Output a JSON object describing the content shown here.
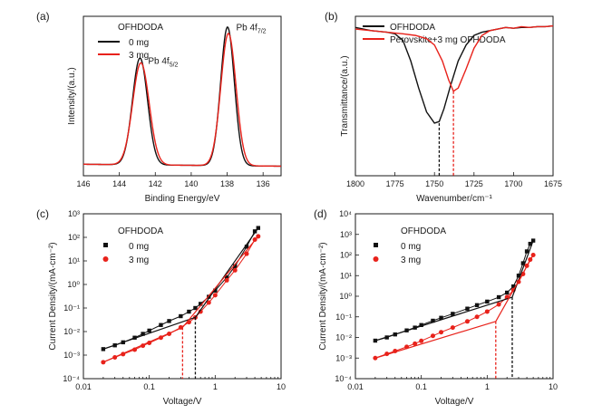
{
  "colors": {
    "black": "#111111",
    "red": "#e8221b"
  },
  "chart_data": [
    {
      "panel": "(a)",
      "type": "line",
      "xlabel": "Binding Energy/eV",
      "ylabel": "Intensity/(a.u.)",
      "xlim": [
        146,
        135
      ],
      "xticks": [
        146,
        144,
        142,
        140,
        138,
        136
      ],
      "ylim": [
        0,
        1
      ],
      "legend_title": "OFHDODA",
      "legend_position": "top-left",
      "annotations": [
        {
          "text": "Pb 4f",
          "sub": "5/2",
          "x": 142.4,
          "y": 0.72
        },
        {
          "text": "Pb 4f",
          "sub": "7/2",
          "x": 137.5,
          "y": 0.93
        }
      ],
      "series": [
        {
          "name": "0 mg",
          "color": "black",
          "baseline": 0.06,
          "peaks": [
            {
              "center": 142.85,
              "height": 0.73,
              "width": 0.42
            },
            {
              "center": 137.98,
              "height": 0.93,
              "width": 0.38
            }
          ]
        },
        {
          "name": "3 mg",
          "color": "red",
          "baseline": 0.06,
          "peaks": [
            {
              "center": 142.8,
              "height": 0.7,
              "width": 0.46
            },
            {
              "center": 137.93,
              "height": 0.89,
              "width": 0.42
            }
          ]
        }
      ]
    },
    {
      "panel": "(b)",
      "type": "line",
      "xlabel": "Wavenumber/cm⁻¹",
      "ylabel": "Transmittance/(a.u.)",
      "xlim": [
        1800,
        1675
      ],
      "xticks": [
        1800,
        1775,
        1750,
        1725,
        1700,
        1675
      ],
      "ylim": [
        0,
        1
      ],
      "legend_position": "top-left",
      "series": [
        {
          "name": "OFHDODA",
          "color": "black",
          "x": [
            1800,
            1790,
            1780,
            1775,
            1770,
            1765,
            1760,
            1755,
            1750,
            1747,
            1744,
            1740,
            1735,
            1730,
            1725,
            1720,
            1715,
            1710,
            1705,
            1700,
            1695,
            1690,
            1685,
            1680,
            1675
          ],
          "y": [
            0.93,
            0.91,
            0.9,
            0.89,
            0.85,
            0.72,
            0.55,
            0.4,
            0.33,
            0.34,
            0.42,
            0.56,
            0.72,
            0.82,
            0.88,
            0.9,
            0.91,
            0.92,
            0.93,
            0.925,
            0.93,
            0.93,
            0.935,
            0.935,
            0.94
          ]
        },
        {
          "name": "Perovskite+3 mg OFHDODA",
          "color": "red",
          "x": [
            1800,
            1790,
            1780,
            1770,
            1762,
            1755,
            1750,
            1745,
            1741,
            1738,
            1735,
            1730,
            1725,
            1720,
            1715,
            1710,
            1705,
            1700,
            1695,
            1690,
            1685,
            1680,
            1675
          ],
          "y": [
            0.92,
            0.91,
            0.9,
            0.89,
            0.88,
            0.86,
            0.82,
            0.72,
            0.6,
            0.53,
            0.55,
            0.67,
            0.8,
            0.88,
            0.91,
            0.92,
            0.93,
            0.925,
            0.935,
            0.93,
            0.935,
            0.935,
            0.94
          ]
        }
      ],
      "markers": [
        {
          "x": 1747,
          "y": 0.33,
          "color": "black"
        },
        {
          "x": 1738,
          "y": 0.53,
          "color": "red"
        }
      ]
    },
    {
      "panel": "(c)",
      "type": "scatter",
      "xscale": "log",
      "yscale": "log",
      "xlabel": "Voltage/V",
      "ylabel": "Current Density/(mA·cm⁻²)",
      "xlim": [
        0.01,
        10
      ],
      "ylim": [
        0.0001,
        1000
      ],
      "xtick_labels": [
        "0.01",
        "0.1",
        "1",
        "10"
      ],
      "ytick_labels": [
        "10⁻⁴",
        "10⁻³",
        "10⁻²",
        "10⁻¹",
        "10⁰",
        "10¹",
        "10²",
        "10³"
      ],
      "legend_title": "OFHDODA",
      "legend_position": "top-left",
      "series": [
        {
          "name": "0 mg",
          "color": "black",
          "marker": "square",
          "x": [
            0.02,
            0.03,
            0.04,
            0.06,
            0.08,
            0.1,
            0.15,
            0.2,
            0.3,
            0.4,
            0.5,
            0.6,
            0.8,
            1,
            1.5,
            2,
            3,
            4,
            4.5
          ],
          "y": [
            0.0018,
            0.0026,
            0.0035,
            0.0055,
            0.008,
            0.011,
            0.019,
            0.028,
            0.045,
            0.07,
            0.1,
            0.15,
            0.3,
            0.55,
            2,
            6,
            40,
            180,
            250
          ]
        },
        {
          "name": "3 mg",
          "color": "red",
          "marker": "circle",
          "x": [
            0.02,
            0.03,
            0.04,
            0.06,
            0.08,
            0.1,
            0.15,
            0.2,
            0.3,
            0.4,
            0.5,
            0.6,
            0.8,
            1,
            1.5,
            2,
            3,
            4,
            4.5
          ],
          "y": [
            0.0005,
            0.0008,
            0.0011,
            0.0017,
            0.0025,
            0.0033,
            0.0055,
            0.008,
            0.015,
            0.025,
            0.04,
            0.07,
            0.17,
            0.35,
            1.5,
            4,
            20,
            80,
            110
          ]
        }
      ],
      "fit_lines": [
        {
          "color": "black",
          "x": [
            0.02,
            0.5
          ],
          "y": [
            0.0018,
            0.04
          ]
        },
        {
          "color": "black",
          "x": [
            0.5,
            4.5
          ],
          "y": [
            0.04,
            250
          ]
        },
        {
          "color": "red",
          "x": [
            0.02,
            0.32
          ],
          "y": [
            0.0005,
            0.015
          ]
        },
        {
          "color": "red",
          "x": [
            0.32,
            4.5
          ],
          "y": [
            0.015,
            110
          ]
        }
      ],
      "vertical_markers": [
        {
          "x": 0.5,
          "y": 0.04,
          "color": "black"
        },
        {
          "x": 0.32,
          "y": 0.015,
          "color": "red"
        }
      ]
    },
    {
      "panel": "(d)",
      "type": "scatter",
      "xscale": "log",
      "yscale": "log",
      "xlabel": "Voltage/V",
      "ylabel": "Current Density/(mA·cm⁻²)",
      "xlim": [
        0.01,
        10
      ],
      "ylim": [
        0.0001,
        10000
      ],
      "xtick_labels": [
        "0.01",
        "0.1",
        "1",
        "10"
      ],
      "ytick_labels": [
        "10⁻⁴",
        "10⁻³",
        "10⁻²",
        "10⁻¹",
        "10⁰",
        "10¹",
        "10²",
        "10³",
        "10⁴"
      ],
      "legend_title": "OFHDODA",
      "legend_position": "top-left",
      "series": [
        {
          "name": "0 mg",
          "color": "black",
          "marker": "square",
          "x": [
            0.02,
            0.03,
            0.04,
            0.06,
            0.08,
            0.1,
            0.15,
            0.2,
            0.3,
            0.5,
            0.7,
            1,
            1.5,
            2,
            2.5,
            3,
            3.5,
            4,
            4.5,
            5
          ],
          "y": [
            0.007,
            0.01,
            0.014,
            0.022,
            0.03,
            0.04,
            0.065,
            0.09,
            0.14,
            0.25,
            0.37,
            0.55,
            0.9,
            1.5,
            3,
            10,
            40,
            150,
            350,
            500
          ]
        },
        {
          "name": "3 mg",
          "color": "red",
          "marker": "circle",
          "x": [
            0.02,
            0.03,
            0.04,
            0.06,
            0.08,
            0.1,
            0.15,
            0.2,
            0.3,
            0.5,
            0.7,
            1,
            1.5,
            2,
            2.5,
            3,
            3.5,
            4,
            4.5,
            5
          ],
          "y": [
            0.001,
            0.0016,
            0.0022,
            0.0035,
            0.005,
            0.0068,
            0.012,
            0.018,
            0.03,
            0.06,
            0.1,
            0.18,
            0.4,
            0.9,
            2,
            5,
            12,
            30,
            60,
            100
          ]
        }
      ],
      "fit_lines": [
        {
          "color": "black",
          "x": [
            0.02,
            2.4
          ],
          "y": [
            0.007,
            0.9
          ]
        },
        {
          "color": "black",
          "x": [
            2.4,
            5
          ],
          "y": [
            0.9,
            500
          ]
        },
        {
          "color": "red",
          "x": [
            0.02,
            1.35
          ],
          "y": [
            0.001,
            0.06
          ]
        },
        {
          "color": "red",
          "x": [
            1.35,
            5
          ],
          "y": [
            0.06,
            100
          ]
        }
      ],
      "vertical_markers": [
        {
          "x": 2.4,
          "y": 0.9,
          "color": "black"
        },
        {
          "x": 1.35,
          "y": 0.06,
          "color": "red"
        }
      ]
    }
  ]
}
